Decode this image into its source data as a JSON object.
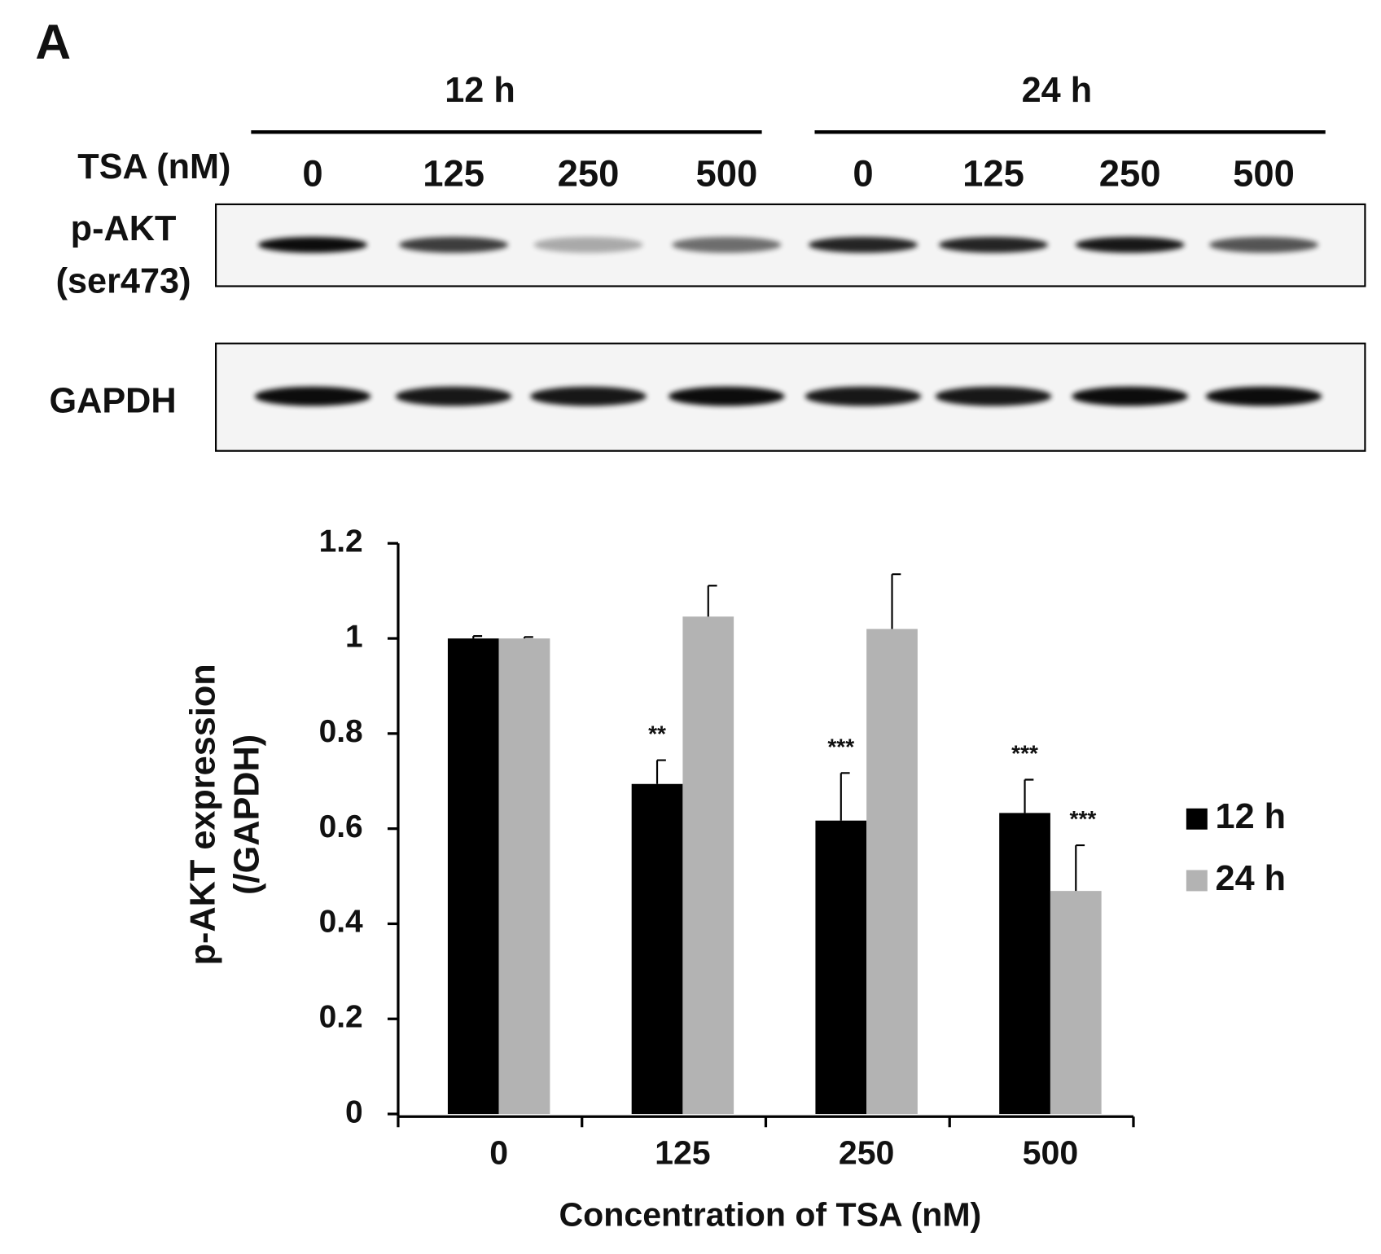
{
  "panel_label": "A",
  "blot": {
    "time_groups": [
      "12 h",
      "24 h"
    ],
    "dose_label": "TSA (nM)",
    "lane_labels": [
      "0",
      "125",
      "250",
      "500",
      "0",
      "125",
      "250",
      "500"
    ],
    "rows": [
      {
        "label": [
          "p-AKT",
          "(ser473)"
        ]
      },
      {
        "label": [
          "GAPDH"
        ]
      }
    ]
  },
  "chart_data": {
    "type": "bar",
    "ylabel": [
      "p-AKT expression",
      "(/GAPDH)"
    ],
    "xlabel": "Concentration of TSA (nM)",
    "categories": [
      "0",
      "125",
      "250",
      "500"
    ],
    "series": [
      {
        "name": "12 h",
        "color": "#000000",
        "values": [
          1.0,
          0.694,
          0.617,
          0.633
        ],
        "errors": [
          0.005,
          0.05,
          0.1,
          0.07
        ],
        "significance": [
          null,
          "**",
          "***",
          "***"
        ]
      },
      {
        "name": "24 h",
        "color": "#b3b3b3",
        "values": [
          1.0,
          1.046,
          1.02,
          0.469
        ],
        "errors": [
          0.003,
          0.065,
          0.115,
          0.096
        ],
        "significance": [
          null,
          null,
          null,
          "***"
        ]
      }
    ],
    "ylim": [
      0,
      1.2
    ],
    "yticks": [
      0,
      0.2,
      0.4,
      0.6,
      0.8,
      1,
      1.2
    ],
    "legend": "right"
  }
}
